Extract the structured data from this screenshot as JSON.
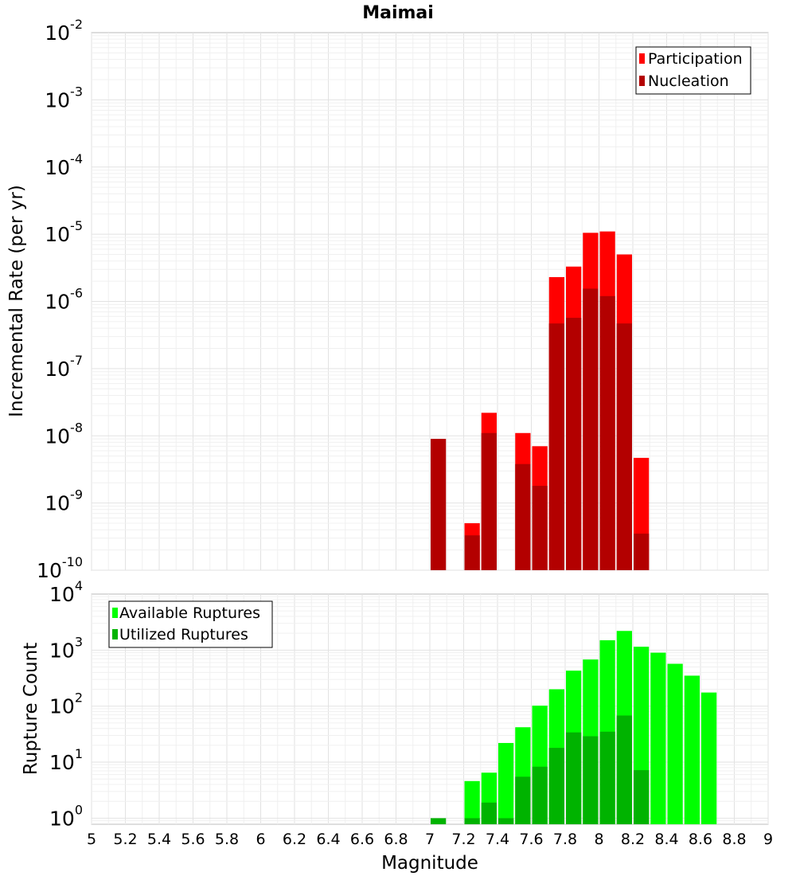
{
  "chart_data": [
    {
      "type": "bar",
      "title": "Maimai",
      "xlabel": "",
      "ylabel": "Incremental Rate (per yr)",
      "yscale": "log",
      "ylim": [
        1e-10,
        0.01
      ],
      "xlim": [
        5,
        9
      ],
      "grid": true,
      "legend_position": "top-right",
      "overlay": true,
      "series": [
        {
          "name": "Participation",
          "color": "#ff0000",
          "points": [
            {
              "x": 7.25,
              "y": 5e-10
            },
            {
              "x": 7.35,
              "y": 2.2e-08
            },
            {
              "x": 7.55,
              "y": 1.1e-08
            },
            {
              "x": 7.65,
              "y": 7e-09
            },
            {
              "x": 7.75,
              "y": 2.3e-06
            },
            {
              "x": 7.85,
              "y": 3.3e-06
            },
            {
              "x": 7.95,
              "y": 1.05e-05
            },
            {
              "x": 8.05,
              "y": 1.1e-05
            },
            {
              "x": 8.15,
              "y": 5e-06
            },
            {
              "x": 8.25,
              "y": 4.7e-09
            }
          ]
        },
        {
          "name": "Nucleation",
          "color": "#b30000",
          "points": [
            {
              "x": 7.05,
              "y": 9e-09
            },
            {
              "x": 7.25,
              "y": 3.3e-10
            },
            {
              "x": 7.35,
              "y": 1.1e-08
            },
            {
              "x": 7.55,
              "y": 3.8e-09
            },
            {
              "x": 7.65,
              "y": 1.8e-09
            },
            {
              "x": 7.75,
              "y": 4.7e-07
            },
            {
              "x": 7.85,
              "y": 5.7e-07
            },
            {
              "x": 7.95,
              "y": 1.55e-06
            },
            {
              "x": 8.05,
              "y": 1.2e-06
            },
            {
              "x": 8.15,
              "y": 4.7e-07
            },
            {
              "x": 8.25,
              "y": 3.5e-10
            }
          ]
        }
      ]
    },
    {
      "type": "bar",
      "title": "",
      "xlabel": "Magnitude",
      "ylabel": "Rupture Count",
      "yscale": "log",
      "ylim": [
        0.78,
        10000
      ],
      "xlim": [
        5,
        9
      ],
      "xticks": [
        "5",
        "5.2",
        "5.4",
        "5.6",
        "5.8",
        "6",
        "6.2",
        "6.4",
        "6.6",
        "6.8",
        "7",
        "7.2",
        "7.4",
        "7.6",
        "7.8",
        "8",
        "8.2",
        "8.4",
        "8.6",
        "8.8",
        "9"
      ],
      "grid": true,
      "legend_position": "top-left",
      "overlay": true,
      "series": [
        {
          "name": "Available Ruptures",
          "color": "#00ff00",
          "points": [
            {
              "x": 7.25,
              "y": 4.6
            },
            {
              "x": 7.35,
              "y": 6.5
            },
            {
              "x": 7.45,
              "y": 22
            },
            {
              "x": 7.55,
              "y": 42
            },
            {
              "x": 7.65,
              "y": 102
            },
            {
              "x": 7.75,
              "y": 200
            },
            {
              "x": 7.85,
              "y": 430
            },
            {
              "x": 7.95,
              "y": 680
            },
            {
              "x": 8.05,
              "y": 1500
            },
            {
              "x": 8.15,
              "y": 2200
            },
            {
              "x": 8.25,
              "y": 1150
            },
            {
              "x": 8.35,
              "y": 900
            },
            {
              "x": 8.45,
              "y": 570
            },
            {
              "x": 8.55,
              "y": 350
            },
            {
              "x": 8.65,
              "y": 175
            }
          ]
        },
        {
          "name": "Utilized Ruptures",
          "color": "#00b300",
          "points": [
            {
              "x": 7.05,
              "y": 1
            },
            {
              "x": 7.25,
              "y": 1
            },
            {
              "x": 7.35,
              "y": 1.9
            },
            {
              "x": 7.45,
              "y": 1
            },
            {
              "x": 7.55,
              "y": 5.5
            },
            {
              "x": 7.65,
              "y": 8.3
            },
            {
              "x": 7.75,
              "y": 18
            },
            {
              "x": 7.85,
              "y": 34
            },
            {
              "x": 7.95,
              "y": 29
            },
            {
              "x": 8.05,
              "y": 35
            },
            {
              "x": 8.15,
              "y": 68
            },
            {
              "x": 8.25,
              "y": 7.2
            }
          ]
        }
      ]
    }
  ]
}
